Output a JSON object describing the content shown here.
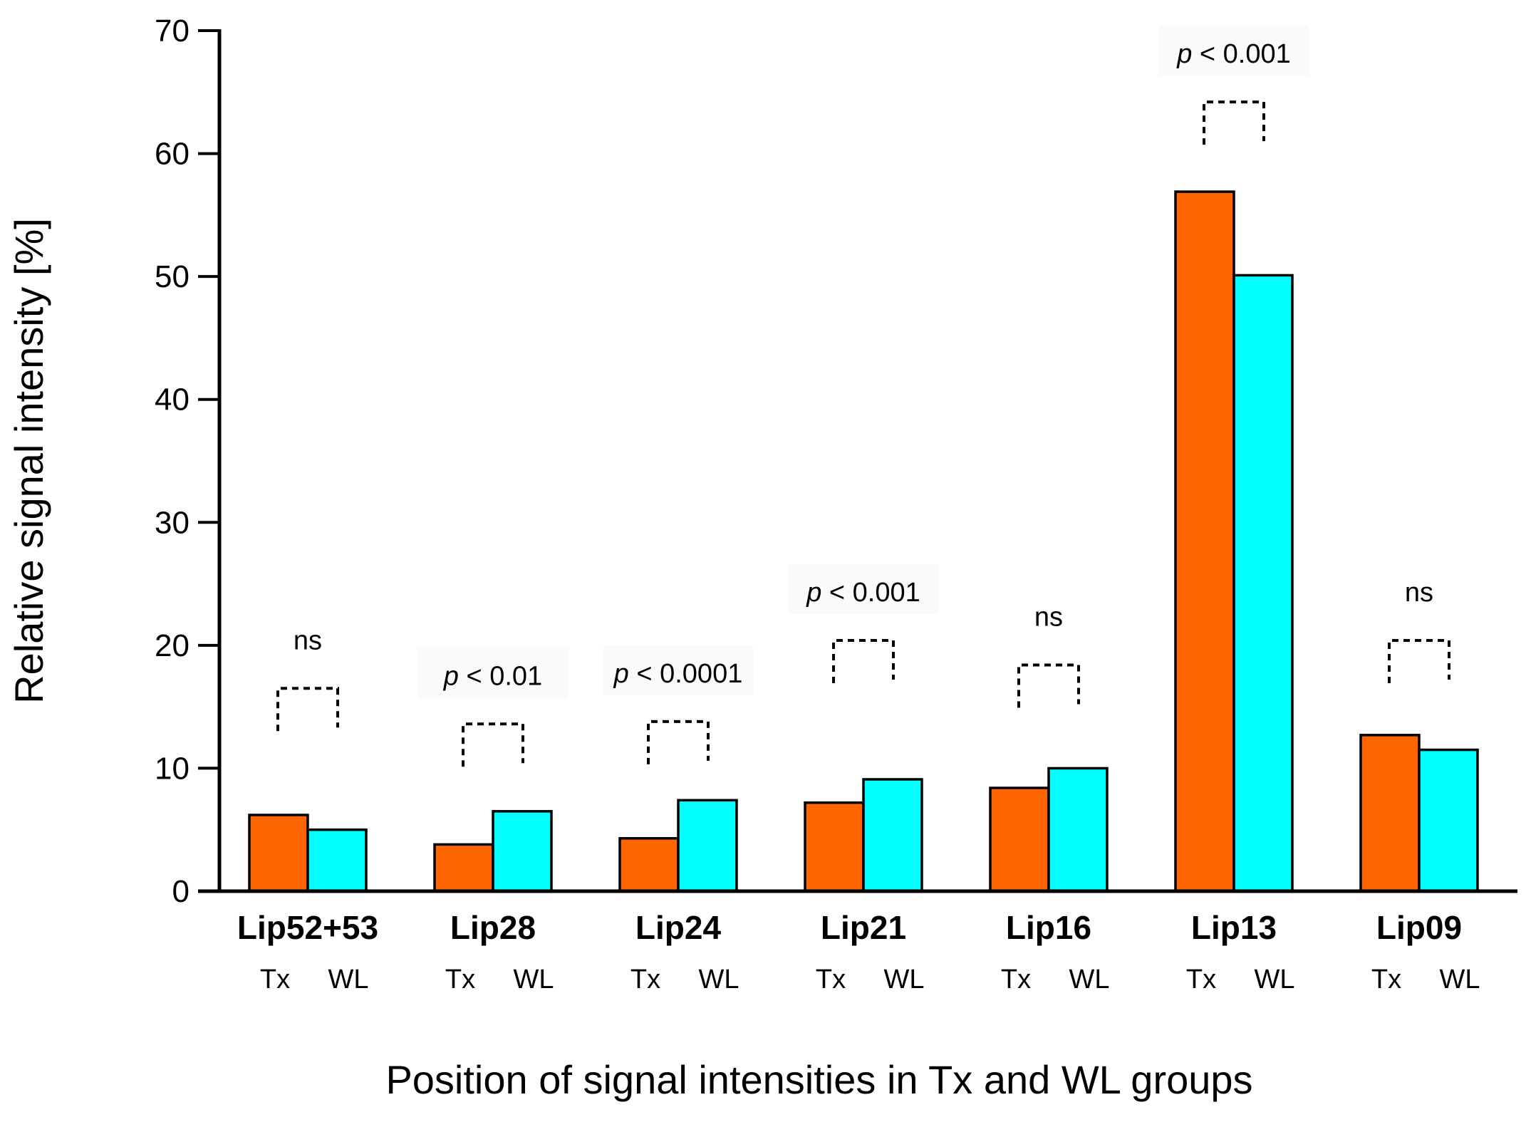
{
  "chart_data": {
    "type": "bar",
    "title": "",
    "xlabel": "Position of signal intensities in Tx and WL groups",
    "ylabel": "Relative signal intensity [%]",
    "ylim": [
      0,
      70
    ],
    "yticks": [
      0,
      10,
      20,
      30,
      40,
      50,
      60,
      70
    ],
    "grid": false,
    "legend": "none",
    "categories": [
      "Lip52+53",
      "Lip28",
      "Lip24",
      "Lip21",
      "Lip16",
      "Lip13",
      "Lip09"
    ],
    "group_labels": [
      "Tx",
      "WL"
    ],
    "series": [
      {
        "name": "Tx",
        "color": "#ff6600",
        "values": [
          6.2,
          3.8,
          4.3,
          7.2,
          8.4,
          56.9,
          12.7
        ]
      },
      {
        "name": "WL",
        "color": "#00ffff",
        "values": [
          5.0,
          6.5,
          7.4,
          9.1,
          10.0,
          50.1,
          11.5
        ]
      }
    ],
    "significance": [
      {
        "category": "Lip52+53",
        "p_prefix": "",
        "text": "ns",
        "bracket_level": 16.5
      },
      {
        "category": "Lip28",
        "p_prefix": "p",
        "text": " < 0.01",
        "bracket_level": 13.6
      },
      {
        "category": "Lip24",
        "p_prefix": "p",
        "text": " < 0.0001",
        "bracket_level": 13.8
      },
      {
        "category": "Lip21",
        "p_prefix": "p",
        "text": " < 0.001",
        "bracket_level": 20.4
      },
      {
        "category": "Lip16",
        "p_prefix": "",
        "text": "ns",
        "bracket_level": 18.4
      },
      {
        "category": "Lip13",
        "p_prefix": "p",
        "text": " < 0.001",
        "bracket_level": 64.2
      },
      {
        "category": "Lip09",
        "p_prefix": "",
        "text": "ns",
        "bracket_level": 20.4
      }
    ]
  }
}
